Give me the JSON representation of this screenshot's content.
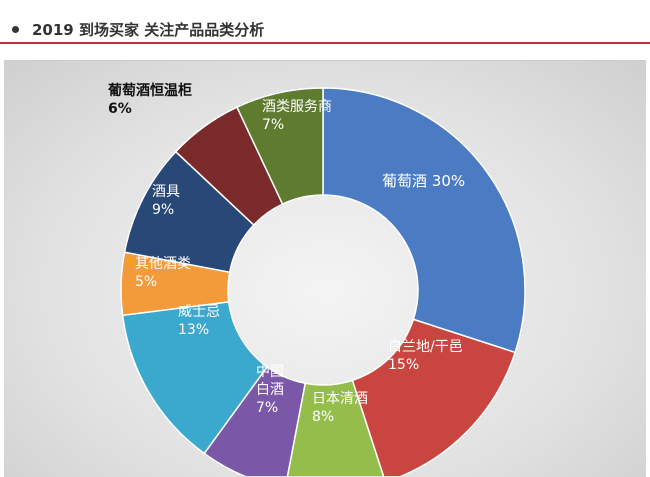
{
  "header": {
    "title": "2019 到场买家 关注产品品类分析"
  },
  "chart_data": {
    "type": "pie",
    "donut": true,
    "title": "2019 到场买家 关注产品品类分析",
    "start": "top",
    "direction": "clockwise",
    "slices": [
      {
        "label": "葡萄酒",
        "value": 30,
        "value_label": "30%",
        "color": "#4b7bc3"
      },
      {
        "label": "白兰地/干邑",
        "value": 15,
        "value_label": "15%",
        "color": "#c8463f"
      },
      {
        "label": "日本清酒",
        "value": 8,
        "value_label": "8%",
        "color": "#95bd4c"
      },
      {
        "label": "中国白酒",
        "value": 7,
        "value_label": "7%",
        "color": "#7a58a7"
      },
      {
        "label": "威士忌",
        "value": 13,
        "value_label": "13%",
        "color": "#3ba8cd"
      },
      {
        "label": "其他酒类",
        "value": 5,
        "value_label": "5%",
        "color": "#f39a3b"
      },
      {
        "label": "酒具",
        "value": 9,
        "value_label": "9%",
        "color": "#284877"
      },
      {
        "label": "葡萄酒恒温柜",
        "value": 6,
        "value_label": "6%",
        "color": "#7b2a2b"
      },
      {
        "label": "酒类服务商",
        "value": 7,
        "value_label": "7%",
        "color": "#5f7b2f"
      }
    ]
  }
}
